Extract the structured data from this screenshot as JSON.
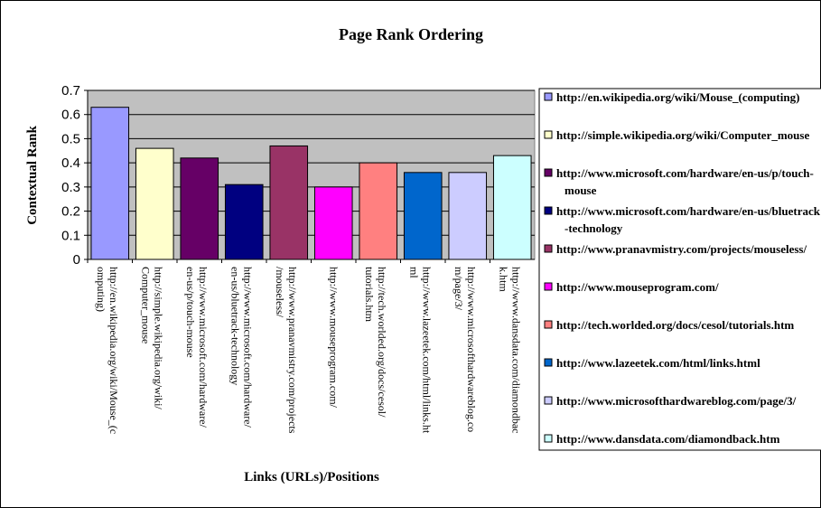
{
  "chart_data": {
    "type": "bar",
    "title": "Page Rank Ordering",
    "x_label": "Links (URLs)/Positions",
    "y_label": "Contextual Rank",
    "categories": [
      "http://en.wikipedia.org/wiki/Mouse_(computing)",
      "http://simple.wikipedia.org/wiki/Computer_mouse",
      "http://www.microsoft.com/hardware/en-us/p/touch-mouse",
      "http://www.microsoft.com/hardware/en-us/bluetrack-technology",
      "http://www.pranavmistry.com/projects/mouseless/",
      "http://www.mouseprogram.com/",
      "http://tech.worlded.org/docs/cesol/tutorials.htm",
      "http://www.lazeetek.com/html/links.html",
      "http://www.microsofthardwareblog.com/page/3/",
      "http://www.dansdata.com/diamondback.htm"
    ],
    "values": [
      0.63,
      0.46,
      0.42,
      0.31,
      0.47,
      0.3,
      0.4,
      0.36,
      0.36,
      0.43
    ],
    "colors": [
      "#9999ff",
      "#ffffcc",
      "#660066",
      "#000080",
      "#993366",
      "#ff00ff",
      "#ff8080",
      "#0066cc",
      "#ccccff",
      "#ccffff"
    ],
    "ylim": [
      0,
      0.7
    ],
    "yticks": [
      0,
      0.1,
      0.2,
      0.3,
      0.4,
      0.5,
      0.6,
      0.7
    ],
    "grid": true,
    "legend": "right"
  }
}
